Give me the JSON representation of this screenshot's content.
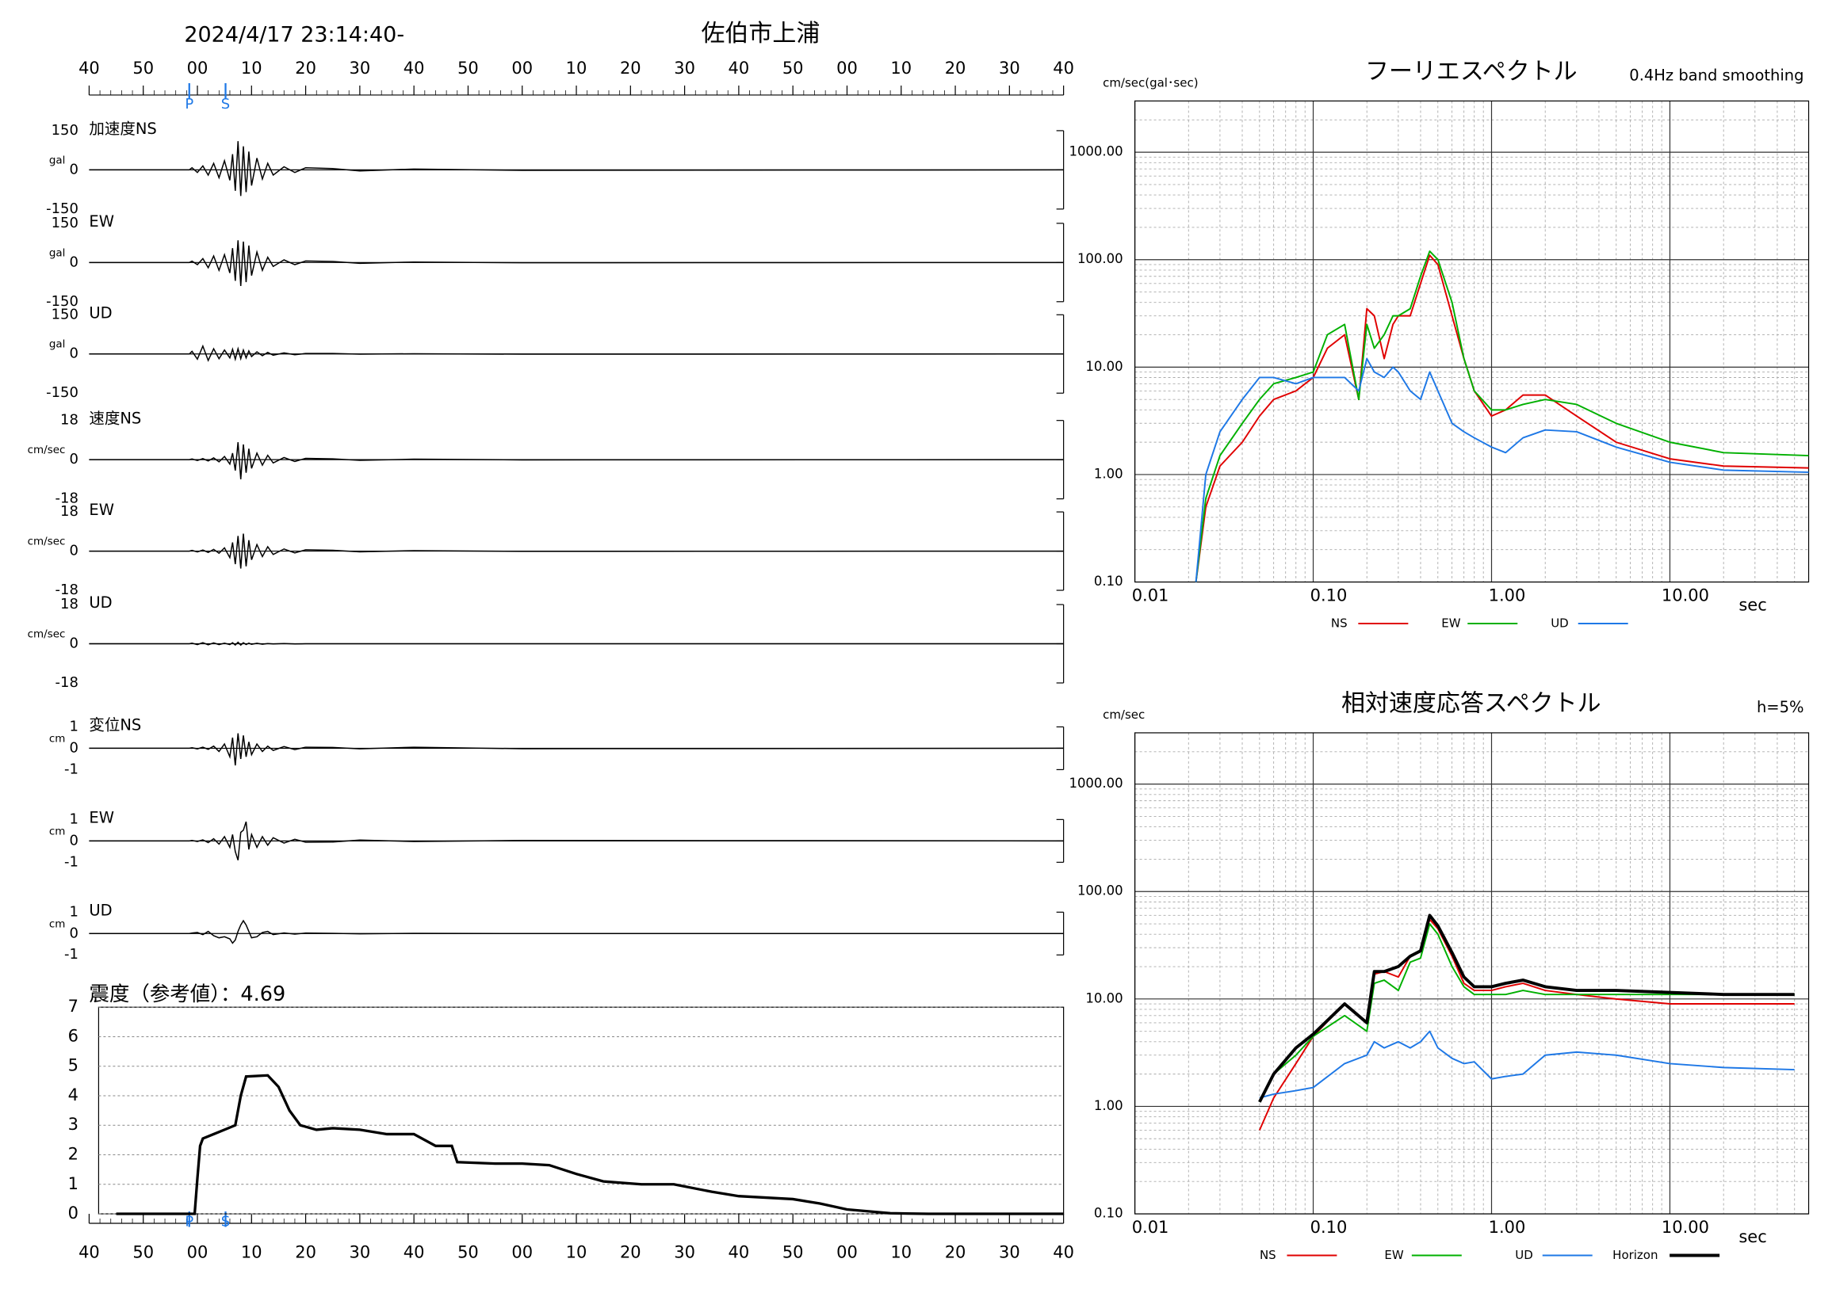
{
  "chart_data": [
    {
      "type": "waveform",
      "title": "2024/4/17 23:14:40-",
      "station": "佐伯市上浦",
      "xlim": [
        -20,
        160
      ],
      "xticks": [
        {
          "value": -20,
          "label": "40"
        },
        {
          "value": -10,
          "label": "50"
        },
        {
          "value": 0,
          "label": "00"
        },
        {
          "value": 10,
          "label": "10"
        },
        {
          "value": 20,
          "label": "20"
        },
        {
          "value": 30,
          "label": "30"
        },
        {
          "value": 40,
          "label": "40"
        },
        {
          "value": 50,
          "label": "50"
        },
        {
          "value": 60,
          "label": "00"
        },
        {
          "value": 70,
          "label": "10"
        },
        {
          "value": 80,
          "label": "20"
        },
        {
          "value": 90,
          "label": "30"
        },
        {
          "value": 100,
          "label": "40"
        },
        {
          "value": 110,
          "label": "50"
        },
        {
          "value": 120,
          "label": "00"
        },
        {
          "value": 130,
          "label": "10"
        },
        {
          "value": 140,
          "label": "20"
        },
        {
          "value": 150,
          "label": "30"
        },
        {
          "value": 160,
          "label": "40"
        }
      ],
      "phases": [
        {
          "label": "P",
          "value": -1.5
        },
        {
          "label": "S",
          "value": 5.2
        }
      ],
      "x": [
        -20,
        -1.5,
        -1,
        0,
        1,
        2,
        3,
        4,
        5,
        6,
        6.5,
        7,
        7.5,
        8,
        8.5,
        9,
        9.5,
        10,
        11,
        12,
        13,
        14,
        16,
        18,
        20,
        25,
        30,
        40,
        60,
        160
      ],
      "panels": [
        {
          "label": "加速度NS",
          "unit": "gal",
          "ylim": [
            -150,
            150
          ],
          "yticks": [
            -150,
            0,
            150
          ],
          "values": [
            0,
            0,
            8,
            -10,
            15,
            -20,
            25,
            -30,
            35,
            -40,
            60,
            -80,
            110,
            -100,
            90,
            -85,
            70,
            -60,
            45,
            -35,
            25,
            -20,
            12,
            -10,
            8,
            5,
            -4,
            3,
            -2,
            0
          ]
        },
        {
          "label": "EW",
          "unit": "gal",
          "ylim": [
            -150,
            150
          ],
          "yticks": [
            -150,
            0,
            150
          ],
          "values": [
            0,
            0,
            5,
            -8,
            15,
            -20,
            25,
            -30,
            30,
            -40,
            55,
            -70,
            85,
            -90,
            80,
            -75,
            65,
            -50,
            40,
            -30,
            20,
            -15,
            10,
            -8,
            6,
            4,
            -3,
            2,
            -1,
            0
          ]
        },
        {
          "label": "UD",
          "unit": "gal",
          "ylim": [
            -150,
            150
          ],
          "yticks": [
            -150,
            0,
            150
          ],
          "values": [
            0,
            0,
            10,
            -20,
            30,
            -25,
            20,
            -18,
            15,
            -15,
            18,
            -20,
            20,
            -18,
            15,
            -15,
            12,
            -10,
            8,
            -7,
            6,
            -5,
            4,
            -3,
            2,
            2,
            -1,
            1,
            -1,
            0
          ]
        },
        {
          "label": "速度NS",
          "unit": "cm/sec",
          "ylim": [
            -18,
            18
          ],
          "yticks": [
            -18,
            0,
            18
          ],
          "values": [
            0,
            0,
            0.3,
            -0.4,
            0.5,
            -0.6,
            0.8,
            -1,
            1.5,
            -2,
            3,
            -5,
            8,
            -9,
            7,
            -6,
            5,
            -4,
            3,
            -2.5,
            2,
            -1.5,
            1,
            -0.8,
            0.6,
            0.4,
            -0.3,
            0.2,
            -0.1,
            0
          ]
        },
        {
          "label": "EW",
          "unit": "cm/sec",
          "ylim": [
            -18,
            18
          ],
          "yticks": [
            -18,
            0,
            18
          ],
          "values": [
            0,
            0,
            0.3,
            -0.4,
            0.5,
            -0.6,
            0.8,
            -1,
            1.5,
            -3,
            4,
            -6,
            7,
            -8,
            8,
            -7,
            5,
            -4,
            3,
            -2.5,
            2,
            -1.5,
            1,
            -0.8,
            0.6,
            0.4,
            -0.3,
            0.2,
            -0.1,
            0
          ]
        },
        {
          "label": "UD",
          "unit": "cm/sec",
          "ylim": [
            -18,
            18
          ],
          "yticks": [
            -18,
            0,
            18
          ],
          "values": [
            0,
            0,
            0.3,
            -0.4,
            0.5,
            -0.5,
            0.4,
            -0.4,
            0.3,
            -0.4,
            0.5,
            -0.6,
            0.7,
            -0.6,
            0.5,
            -0.4,
            0.3,
            -0.3,
            0.2,
            -0.2,
            0.1,
            -0.1,
            0.1,
            -0.1,
            0,
            0,
            0,
            0,
            0,
            0
          ]
        },
        {
          "label": "変位NS",
          "unit": "cm",
          "ylim": [
            -1,
            1
          ],
          "yticks": [
            -1,
            0,
            1
          ],
          "values": [
            0,
            0,
            0.02,
            -0.03,
            0.05,
            -0.05,
            0.1,
            -0.15,
            0.2,
            -0.4,
            0.5,
            -0.8,
            0.7,
            -0.5,
            0.6,
            -0.4,
            0.3,
            -0.3,
            0.2,
            -0.15,
            0.1,
            -0.1,
            0.08,
            -0.06,
            0.05,
            0.04,
            -0.03,
            0.05,
            -0.02,
            0
          ]
        },
        {
          "label": "EW",
          "unit": "cm",
          "ylim": [
            -1,
            1
          ],
          "yticks": [
            -1,
            0,
            1
          ],
          "values": [
            0,
            0,
            0.02,
            -0.03,
            0.05,
            -0.08,
            0.1,
            -0.15,
            0.2,
            -0.3,
            0.3,
            -0.5,
            -0.9,
            0.4,
            0.5,
            0.9,
            -0.4,
            0.3,
            -0.3,
            0.2,
            -0.2,
            0.15,
            -0.1,
            0.08,
            -0.06,
            -0.05,
            0.04,
            -0.03,
            0.02,
            0
          ]
        },
        {
          "label": "UD",
          "unit": "cm",
          "ylim": [
            -1,
            1
          ],
          "yticks": [
            -1,
            0,
            1
          ],
          "values": [
            0,
            0,
            0.02,
            0.05,
            -0.05,
            0.1,
            -0.1,
            -0.2,
            -0.15,
            -0.25,
            -0.45,
            -0.3,
            0.1,
            0.4,
            0.6,
            0.4,
            0.1,
            -0.2,
            -0.15,
            0.05,
            0.1,
            -0.05,
            0.03,
            -0.03,
            0.02,
            0.01,
            -0.01,
            0.01,
            0,
            0
          ]
        }
      ]
    },
    {
      "type": "intensity",
      "title": "震度（参考値）：",
      "value": 4.69,
      "xlim": [
        -20,
        160
      ],
      "xticks": [
        {
          "value": -20,
          "label": "40"
        },
        {
          "value": -10,
          "label": "50"
        },
        {
          "value": 0,
          "label": "00"
        },
        {
          "value": 10,
          "label": "10"
        },
        {
          "value": 20,
          "label": "20"
        },
        {
          "value": 30,
          "label": "30"
        },
        {
          "value": 40,
          "label": "40"
        },
        {
          "value": 50,
          "label": "50"
        },
        {
          "value": 60,
          "label": "00"
        },
        {
          "value": 70,
          "label": "10"
        },
        {
          "value": 80,
          "label": "20"
        },
        {
          "value": 90,
          "label": "30"
        },
        {
          "value": 100,
          "label": "40"
        },
        {
          "value": 110,
          "label": "50"
        },
        {
          "value": 120,
          "label": "00"
        },
        {
          "value": 130,
          "label": "10"
        },
        {
          "value": 140,
          "label": "20"
        },
        {
          "value": 150,
          "label": "30"
        },
        {
          "value": 160,
          "label": "40"
        }
      ],
      "phases": [
        {
          "label": "P",
          "value": -1.5
        },
        {
          "label": "S",
          "value": 5.2
        }
      ],
      "ylim": [
        0,
        7
      ],
      "yticks": [
        0,
        1,
        2,
        3,
        4,
        5,
        6,
        7
      ],
      "grid": true,
      "x": [
        -15,
        -0.5,
        0,
        0.5,
        1,
        3,
        5,
        7,
        8,
        9,
        13,
        15,
        17,
        19,
        22,
        25,
        30,
        35,
        40,
        44,
        47,
        48,
        55,
        60,
        65,
        70,
        75,
        82,
        88,
        95,
        100,
        110,
        115,
        120,
        128,
        135,
        160
      ],
      "values": [
        0,
        0,
        1.2,
        2.3,
        2.55,
        2.7,
        2.85,
        3.0,
        4.0,
        4.65,
        4.69,
        4.3,
        3.5,
        3.0,
        2.85,
        2.9,
        2.85,
        2.7,
        2.7,
        2.3,
        2.3,
        1.75,
        1.7,
        1.7,
        1.65,
        1.35,
        1.1,
        1.0,
        1.0,
        0.75,
        0.6,
        0.5,
        0.35,
        0.15,
        0.02,
        0,
        0
      ]
    },
    {
      "type": "loglog",
      "title": "フーリエスペクトル",
      "subtitle": "0.4Hz band smoothing",
      "ylabel": "cm/sec(gal･sec)",
      "xlabel": "sec",
      "xlim": [
        0.01,
        60
      ],
      "ylim": [
        0.1,
        3000
      ],
      "xticks": [
        {
          "value": 0.01,
          "label": "0.01"
        },
        {
          "value": 0.1,
          "label": "0.10"
        },
        {
          "value": 1,
          "label": "1.00"
        },
        {
          "value": 10,
          "label": "10.00"
        }
      ],
      "yticks": [
        {
          "value": 0.1,
          "label": "0.10"
        },
        {
          "value": 1,
          "label": "1.00"
        },
        {
          "value": 10,
          "label": "10.00"
        },
        {
          "value": 100,
          "label": "100.00"
        },
        {
          "value": 1000,
          "label": "1000.00"
        }
      ],
      "x": [
        0.022,
        0.025,
        0.03,
        0.04,
        0.05,
        0.06,
        0.08,
        0.1,
        0.12,
        0.15,
        0.18,
        0.2,
        0.22,
        0.25,
        0.28,
        0.3,
        0.35,
        0.4,
        0.45,
        0.5,
        0.6,
        0.7,
        0.8,
        1.0,
        1.2,
        1.5,
        2,
        3,
        5,
        10,
        20,
        60
      ],
      "series": [
        {
          "name": "NS",
          "color": "#e00000",
          "line_width": 1.3,
          "values": [
            0.1,
            0.5,
            1.2,
            2,
            3.5,
            5,
            6,
            8,
            15,
            20,
            5,
            35,
            30,
            12,
            25,
            30,
            30,
            60,
            110,
            90,
            30,
            12,
            6,
            3.5,
            4,
            5.5,
            5.5,
            3.5,
            2,
            1.4,
            1.2,
            1.15
          ]
        },
        {
          "name": "EW",
          "color": "#00b000",
          "line_width": 1.3,
          "values": [
            0.1,
            0.6,
            1.5,
            3,
            5,
            7,
            8,
            9,
            20,
            25,
            5,
            25,
            15,
            20,
            30,
            30,
            35,
            70,
            120,
            100,
            40,
            12,
            6,
            4,
            4,
            4.5,
            5,
            4.5,
            3,
            2,
            1.6,
            1.5
          ]
        },
        {
          "name": "UD",
          "color": "#1e78e6",
          "line_width": 1.3,
          "values": [
            0.1,
            1,
            2.5,
            5,
            8,
            8,
            7,
            8,
            8,
            8,
            6,
            12,
            9,
            8,
            10,
            9,
            6,
            5,
            9,
            6,
            3,
            2.5,
            2.2,
            1.8,
            1.6,
            2.2,
            2.6,
            2.5,
            1.8,
            1.3,
            1.1,
            1.05
          ]
        }
      ]
    },
    {
      "type": "loglog",
      "title": "相対速度応答スペクトル",
      "subtitle": "h=5%",
      "ylabel": "cm/sec",
      "xlabel": "sec",
      "xlim": [
        0.01,
        60
      ],
      "ylim": [
        0.1,
        3000
      ],
      "xticks": [
        {
          "value": 0.01,
          "label": "0.01"
        },
        {
          "value": 0.1,
          "label": "0.10"
        },
        {
          "value": 1,
          "label": "1.00"
        },
        {
          "value": 10,
          "label": "10.00"
        }
      ],
      "yticks": [
        {
          "value": 0.1,
          "label": "0.10"
        },
        {
          "value": 1,
          "label": "1.00"
        },
        {
          "value": 10,
          "label": "10.00"
        },
        {
          "value": 100,
          "label": "100.00"
        },
        {
          "value": 1000,
          "label": "1000.00"
        }
      ],
      "x": [
        0.05,
        0.06,
        0.08,
        0.1,
        0.15,
        0.2,
        0.22,
        0.25,
        0.3,
        0.35,
        0.4,
        0.45,
        0.5,
        0.6,
        0.7,
        0.8,
        1.0,
        1.2,
        1.5,
        2,
        3,
        5,
        10,
        20,
        50
      ],
      "series": [
        {
          "name": "NS",
          "color": "#e00000",
          "line_width": 1.3,
          "values": [
            0.6,
            1.2,
            2.5,
            4.5,
            9,
            6,
            17,
            18,
            16,
            25,
            28,
            55,
            45,
            25,
            14,
            12,
            12,
            13,
            14,
            12,
            11,
            10,
            9,
            9,
            9
          ]
        },
        {
          "name": "EW",
          "color": "#00b000",
          "line_width": 1.3,
          "values": [
            1.1,
            2,
            3,
            4.5,
            7,
            5,
            14,
            15,
            12,
            22,
            24,
            50,
            40,
            20,
            13,
            11,
            11,
            11,
            12,
            11,
            11,
            11,
            11,
            11,
            11
          ]
        },
        {
          "name": "UD",
          "color": "#1e78e6",
          "line_width": 1.3,
          "values": [
            1.2,
            1.3,
            1.4,
            1.5,
            2.5,
            3,
            4,
            3.5,
            4,
            3.5,
            4,
            5,
            3.5,
            2.8,
            2.5,
            2.6,
            1.8,
            1.9,
            2,
            3,
            3.2,
            3,
            2.5,
            2.3,
            2.2
          ]
        },
        {
          "name": "Horizon",
          "color": "#000000",
          "line_width": 2.6,
          "values": [
            1.1,
            2,
            3.5,
            4.7,
            9,
            6,
            18,
            18,
            20,
            25,
            28,
            60,
            48,
            27,
            16,
            13,
            13,
            14,
            15,
            13,
            12,
            12,
            11.5,
            11,
            11
          ]
        }
      ]
    }
  ]
}
